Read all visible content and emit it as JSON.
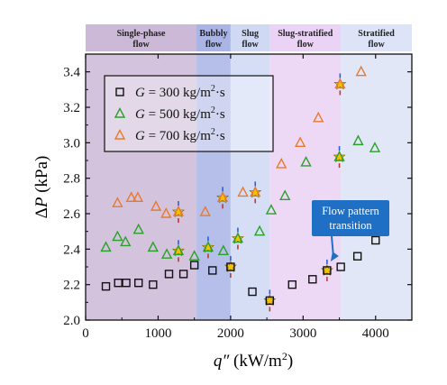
{
  "chart_data": {
    "type": "scatter",
    "xlabel": "q″ (kW/m²)",
    "ylabel": "ΔP (kPa)",
    "xlim": [
      0,
      4500
    ],
    "ylim": [
      2.0,
      3.5
    ],
    "xticks": [
      0,
      1000,
      2000,
      3000,
      4000
    ],
    "yticks": [
      2.0,
      2.2,
      2.4,
      2.6,
      2.8,
      3.0,
      3.2,
      3.4
    ],
    "grid": false,
    "legend_position": "top-left",
    "regions": [
      {
        "label": [
          "Single-phase",
          "flow"
        ],
        "x_start": 0,
        "x_end": 1530,
        "color": "#cbb8d6"
      },
      {
        "label": [
          "Bubbly",
          "flow"
        ],
        "x_start": 1530,
        "x_end": 2000,
        "color": "#a8b4e6"
      },
      {
        "label": [
          "Slug",
          "flow"
        ],
        "x_start": 2000,
        "x_end": 2540,
        "color": "#cfd8f4"
      },
      {
        "label": [
          "Slug-stratified",
          "flow"
        ],
        "x_start": 2540,
        "x_end": 3520,
        "color": "#ead2f5"
      },
      {
        "label": [
          "Stratified",
          "flow"
        ],
        "x_start": 3520,
        "x_end": 4500,
        "color": "#dde3f7"
      }
    ],
    "series": [
      {
        "name": "G = 300 kg/m²·s",
        "legend_parts": [
          "G",
          " = 300 kg/m",
          "2",
          "·s"
        ],
        "marker": "square",
        "color": "#111111",
        "x": [
          280,
          450,
          560,
          730,
          930,
          1150,
          1350,
          1500,
          1750,
          2000,
          2300,
          2540,
          2850,
          3130,
          3330,
          3520,
          3750,
          4000
        ],
        "y": [
          2.19,
          2.21,
          2.21,
          2.21,
          2.2,
          2.26,
          2.26,
          2.31,
          2.28,
          2.3,
          2.16,
          2.11,
          2.2,
          2.23,
          2.28,
          2.3,
          2.36,
          2.45
        ],
        "highlighted_x": [
          1530,
          2000,
          2540,
          3320
        ]
      },
      {
        "name": "G = 500 kg/m²·s",
        "legend_parts": [
          "G",
          " = 500 kg/m",
          "2",
          "·s"
        ],
        "marker": "triangle",
        "color": "#2aa12a",
        "x": [
          280,
          440,
          550,
          730,
          930,
          1120,
          1280,
          1500,
          1690,
          1900,
          2100,
          2400,
          2560,
          2750,
          3040,
          3500,
          3760,
          3990
        ],
        "y": [
          2.41,
          2.47,
          2.44,
          2.51,
          2.41,
          2.37,
          2.39,
          2.36,
          2.41,
          2.39,
          2.46,
          2.5,
          2.62,
          2.7,
          2.89,
          2.92,
          3.01,
          2.97
        ],
        "highlighted_x": [
          1280,
          1690,
          2100,
          3500
        ]
      },
      {
        "name": "G = 700 kg/m²·s",
        "legend_parts": [
          "G",
          " = 700 kg/m",
          "2",
          "·s"
        ],
        "marker": "triangle",
        "color": "#e87a2e",
        "x": [
          440,
          630,
          720,
          970,
          1110,
          1280,
          1650,
          1890,
          2170,
          2340,
          2700,
          2960,
          3210,
          3510,
          3800
        ],
        "y": [
          2.66,
          2.69,
          2.69,
          2.64,
          2.6,
          2.61,
          2.61,
          2.69,
          2.72,
          2.72,
          2.88,
          3.0,
          3.14,
          3.33,
          3.4
        ],
        "highlighted_x": [
          1280,
          1890,
          2340,
          3510
        ]
      }
    ],
    "annotation": {
      "text": [
        "Flow pattern",
        "transition"
      ],
      "points_to": {
        "x": 3330,
        "y": 2.29
      }
    }
  }
}
